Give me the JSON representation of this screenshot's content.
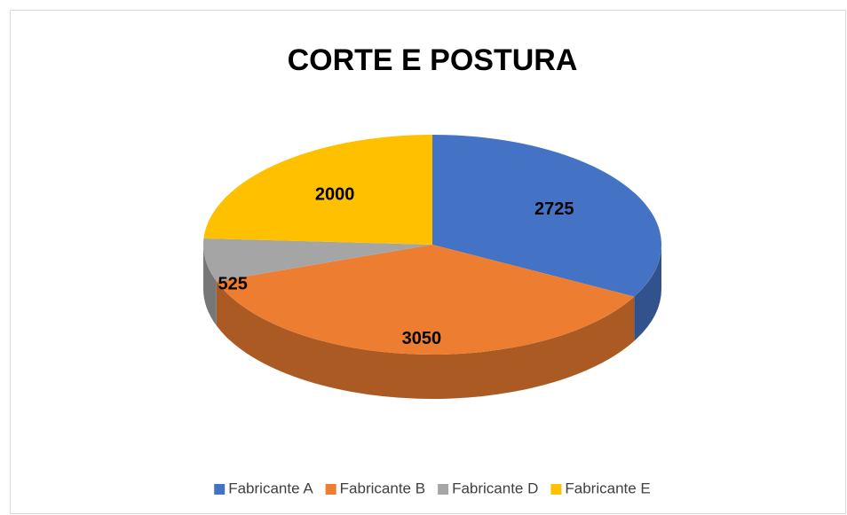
{
  "chart_data": {
    "type": "pie",
    "title": "CORTE E POSTURA",
    "categories": [
      "Fabricante A",
      "Fabricante B",
      "Fabricante D",
      "Fabricante E"
    ],
    "values": [
      2725,
      3050,
      525,
      2000
    ],
    "colors": [
      "#4472c4",
      "#ed7d31",
      "#a5a5a5",
      "#ffc000"
    ],
    "legend": "bottom"
  }
}
